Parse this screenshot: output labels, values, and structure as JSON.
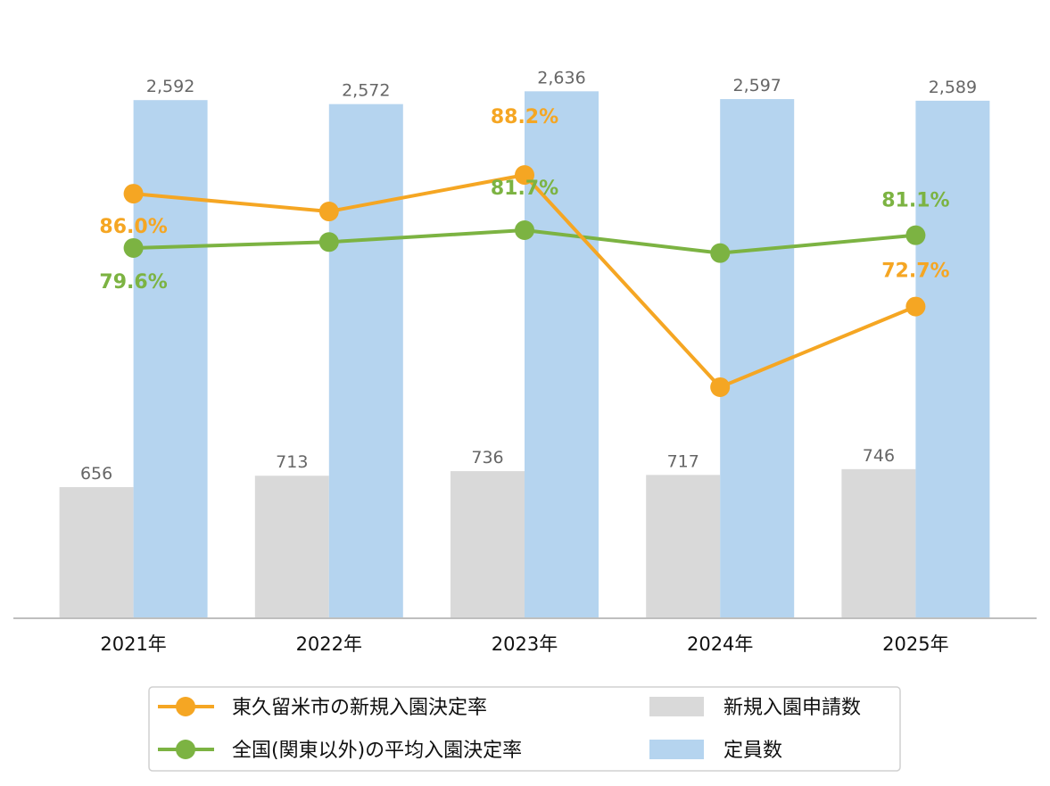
{
  "chart_data": {
    "type": "bar",
    "categories": [
      "2021年",
      "2022年",
      "2023年",
      "2024年",
      "2025年"
    ],
    "bar_series": [
      {
        "name": "新規入園申請数",
        "values": [
          656,
          713,
          736,
          717,
          746
        ],
        "labels": [
          "656",
          "713",
          "736",
          "717",
          "746"
        ],
        "color": "#d9d9d9"
      },
      {
        "name": "定員数",
        "values": [
          2592,
          2572,
          2636,
          2597,
          2589
        ],
        "labels": [
          "2,592",
          "2,572",
          "2,636",
          "2,597",
          "2,589"
        ],
        "color": "#b5d4ef"
      }
    ],
    "line_series": [
      {
        "name": "東久留米市の新規入園決定率",
        "values": [
          86.0,
          83.9,
          88.2,
          63.2,
          72.7
        ],
        "color": "#f5a623",
        "shown_labels": [
          {
            "index": 0,
            "text": "86.0%"
          },
          {
            "index": 2,
            "text": "88.2%"
          },
          {
            "index": 4,
            "text": "72.7%"
          }
        ]
      },
      {
        "name": "全国(関東以外)の平均入園決定率",
        "values": [
          79.6,
          80.3,
          81.7,
          79.0,
          81.1
        ],
        "color": "#7cb342",
        "shown_labels": [
          {
            "index": 0,
            "text": "79.6%"
          },
          {
            "index": 2,
            "text": "81.7%"
          },
          {
            "index": 4,
            "text": "81.1%"
          }
        ]
      }
    ],
    "bar_ylim": [
      0,
      2700
    ],
    "line_ylim": [
      44,
      92
    ],
    "grid": false,
    "legend_position": "bottom",
    "axis_color": "#bfbfbf",
    "value_label_color": "#666666"
  }
}
